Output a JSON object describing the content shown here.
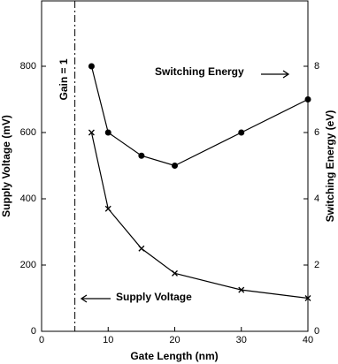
{
  "chart_data": {
    "type": "line",
    "x_label": "Gate Length (nm)",
    "y_label": "Supply Voltage (mV)",
    "y2_label": "Switching Energy (eV)",
    "xlim": [
      0,
      40
    ],
    "xticks": [
      0,
      10,
      20,
      30,
      40
    ],
    "ylim": [
      0,
      1000
    ],
    "yticks": [
      0,
      200,
      400,
      600,
      800
    ],
    "y2lim": [
      0,
      10
    ],
    "y2ticks": [
      0,
      2,
      4,
      6,
      8
    ],
    "vline": {
      "x": 5,
      "label": "Gain = 1"
    },
    "series": [
      {
        "name": "Supply Voltage",
        "marker": "x",
        "color": "#000000",
        "x": [
          7.5,
          10,
          15,
          20,
          30,
          40
        ],
        "values": [
          600,
          370,
          250,
          175,
          125,
          100
        ]
      },
      {
        "name": "Switching Energy",
        "marker": "o",
        "color": "#000000",
        "axis": "y2",
        "x": [
          7.5,
          10,
          15,
          20,
          30,
          40
        ],
        "values": [
          8,
          6,
          5.3,
          5,
          6,
          7
        ]
      }
    ]
  }
}
